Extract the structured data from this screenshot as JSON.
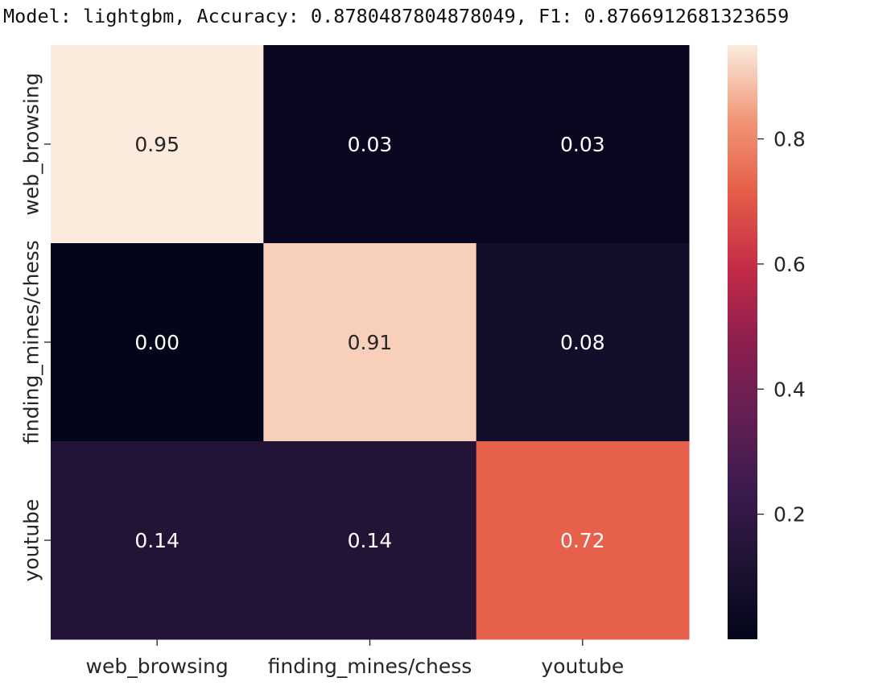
{
  "chart_data": {
    "type": "heatmap",
    "title": "Model: lightgbm, Accuracy: 0.8780487804878049, F1: 0.8766912681323659",
    "x_categories": [
      "web_browsing",
      "finding_mines/chess",
      "youtube"
    ],
    "y_categories": [
      "web_browsing",
      "finding_mines/chess",
      "youtube"
    ],
    "values": [
      [
        0.95,
        0.03,
        0.03
      ],
      [
        0.0,
        0.91,
        0.08
      ],
      [
        0.14,
        0.14,
        0.72
      ]
    ],
    "annotations": [
      [
        "0.95",
        "0.03",
        "0.03"
      ],
      [
        "0.00",
        "0.91",
        "0.08"
      ],
      [
        "0.14",
        "0.14",
        "0.72"
      ]
    ],
    "colormap": "rocket",
    "colorbar": {
      "range": [
        0.0,
        0.95
      ],
      "ticks": [
        0.2,
        0.4,
        0.6,
        0.8
      ],
      "tick_labels": [
        "0.2",
        "0.4",
        "0.6",
        "0.8"
      ]
    },
    "xlabel": "",
    "ylabel": ""
  }
}
